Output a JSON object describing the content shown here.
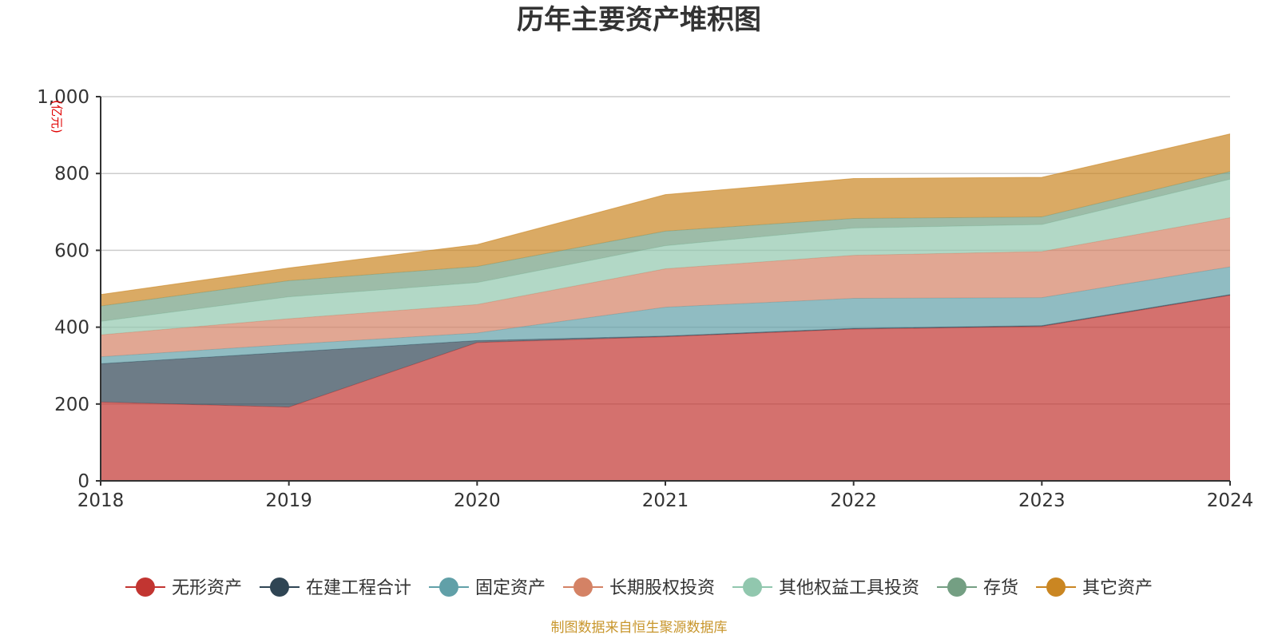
{
  "chart_data": {
    "type": "area",
    "stacked": true,
    "title": "历年主要资产堆积图",
    "ylabel": "(亿元)",
    "xlabel": "",
    "categories": [
      "2018",
      "2019",
      "2020",
      "2021",
      "2022",
      "2023",
      "2024"
    ],
    "ylim": [
      0,
      1000
    ],
    "yticks": [
      0,
      200,
      400,
      600,
      800,
      1000
    ],
    "ytick_labels": [
      "0",
      "200",
      "400",
      "600",
      "800",
      "1,000"
    ],
    "grid": true,
    "legend_position": "bottom",
    "series": [
      {
        "name": "无形资产",
        "color": "#c23531",
        "values": [
          205,
          192,
          360,
          375,
          395,
          402,
          483
        ]
      },
      {
        "name": "在建工程合计",
        "color": "#2f4554",
        "values": [
          100,
          143,
          5,
          2,
          2,
          2,
          2
        ]
      },
      {
        "name": "固定资产",
        "color": "#61a0a8",
        "values": [
          18,
          20,
          20,
          75,
          78,
          73,
          72
        ]
      },
      {
        "name": "长期股权投资",
        "color": "#d48265",
        "values": [
          57,
          67,
          74,
          100,
          112,
          120,
          128
        ]
      },
      {
        "name": "其他权益工具投资",
        "color": "#91c7ae",
        "values": [
          35,
          57,
          57,
          60,
          71,
          70,
          100
        ]
      },
      {
        "name": "存货",
        "color": "#749f83",
        "values": [
          40,
          42,
          42,
          38,
          25,
          20,
          20
        ]
      },
      {
        "name": "其它资产",
        "color": "#ca8622",
        "values": [
          30,
          33,
          57,
          95,
          104,
          103,
          98
        ]
      }
    ],
    "source_note": "制图数据来自恒生聚源数据库"
  }
}
